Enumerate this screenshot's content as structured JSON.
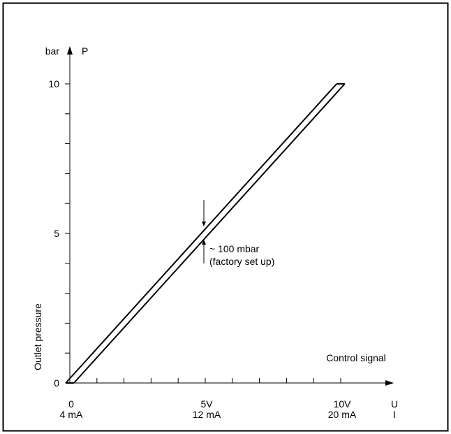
{
  "chart_data": {
    "type": "line",
    "title": "",
    "ylabel": "Outlet pressure",
    "xlabel": "Control signal",
    "y_unit": "bar",
    "y_symbol": "P",
    "x_symbol_voltage": "U",
    "x_symbol_current": "I",
    "xlim": [
      0,
      10
    ],
    "ylim": [
      0,
      10
    ],
    "x_ticks": [
      {
        "v": 0,
        "voltage": "0",
        "current": "4 mA"
      },
      {
        "v": 5,
        "voltage": "5V",
        "current": "12 mA"
      },
      {
        "v": 10,
        "voltage": "10V",
        "current": "20 mA"
      }
    ],
    "y_ticks": [
      {
        "v": 0,
        "label": "0"
      },
      {
        "v": 5,
        "label": "5"
      },
      {
        "v": 10,
        "label": "10"
      }
    ],
    "x_minor_step": 1,
    "y_minor_step": 1,
    "series": [
      {
        "x": [
          0,
          10
        ],
        "y": [
          0,
          10
        ]
      }
    ],
    "band_offset_x": 0.15,
    "annotation": {
      "x": 5,
      "y": 5,
      "line1": "~ 100 mbar",
      "line2": "(factory set up)"
    },
    "grid": false,
    "color": "#000000"
  }
}
